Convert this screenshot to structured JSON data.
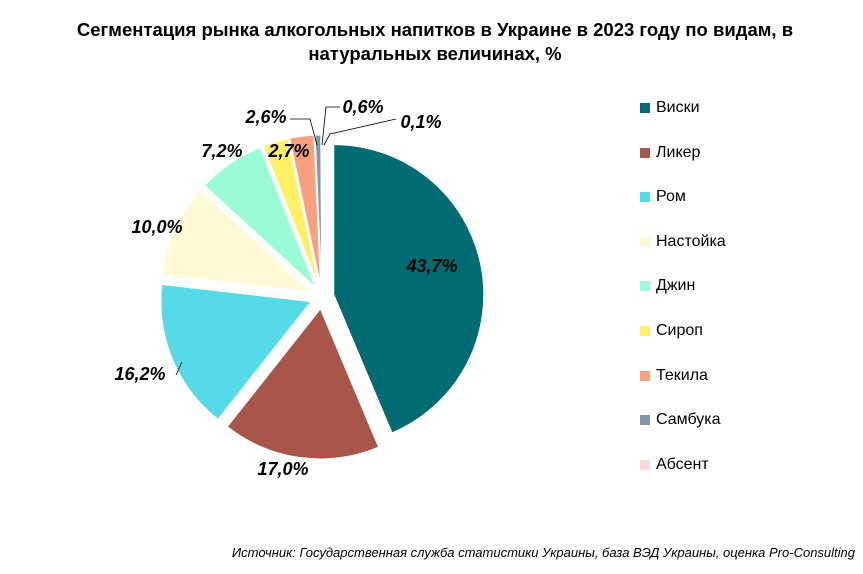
{
  "chart_data": {
    "type": "pie",
    "title": "Сегментация рынка алкогольных напитков в Украине в 2023 году по видам, в натуральных величинах, %",
    "categories": [
      "Виски",
      "Ликер",
      "Ром",
      "Настойка",
      "Джин",
      "Сироп",
      "Текила",
      "Самбука",
      "Абсент"
    ],
    "values": [
      43.7,
      17.0,
      16.2,
      10.0,
      7.2,
      2.7,
      2.6,
      0.6,
      0.1
    ],
    "data_labels": [
      "43,7%",
      "17,0%",
      "16,2%",
      "10,0%",
      "7,2%",
      "2,7%",
      "2,6%",
      "0,6%",
      "0,1%"
    ],
    "colors": [
      "#006B72",
      "#A8554A",
      "#57DAE8",
      "#FFF9D6",
      "#99FCD6",
      "#FFF066",
      "#F9A07F",
      "#8396A8",
      "#F8DCDA"
    ],
    "legend_position": "right",
    "exploded": true
  },
  "source": "Источник: Государственная служба статистики Украины, база ВЭД Украины, оценка Pro-Consulting"
}
